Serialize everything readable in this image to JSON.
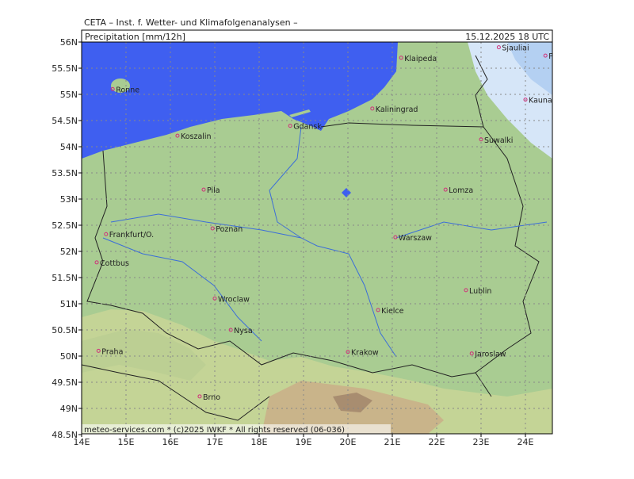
{
  "header": "CETA – Inst. f. Wetter- und Klimafolgenanalysen –",
  "title": "Precipitation [mm/12h]",
  "date": "15.12.2025 18 UTC",
  "footer": "meteo-services.com * (c)2025 IWKF * All rights reserved (06-036)",
  "lon_ticks": [
    {
      "value": 14,
      "label": "14E"
    },
    {
      "value": 15,
      "label": "15E"
    },
    {
      "value": 16,
      "label": "16E"
    },
    {
      "value": 17,
      "label": "17E"
    },
    {
      "value": 18,
      "label": "18E"
    },
    {
      "value": 19,
      "label": "19E"
    },
    {
      "value": 20,
      "label": "20E"
    },
    {
      "value": 21,
      "label": "21E"
    },
    {
      "value": 22,
      "label": "22E"
    },
    {
      "value": 23,
      "label": "23E"
    },
    {
      "value": 24,
      "label": "24E"
    }
  ],
  "lat_ticks": [
    {
      "value": 56,
      "label": "56N"
    },
    {
      "value": 55.5,
      "label": "55.5N"
    },
    {
      "value": 55,
      "label": "55N"
    },
    {
      "value": 54.5,
      "label": "54.5N"
    },
    {
      "value": 54,
      "label": "54N"
    },
    {
      "value": 53.5,
      "label": "53.5N"
    },
    {
      "value": 53,
      "label": "53N"
    },
    {
      "value": 52.5,
      "label": "52.5N"
    },
    {
      "value": 52,
      "label": "52N"
    },
    {
      "value": 51.5,
      "label": "51.5N"
    },
    {
      "value": 51,
      "label": "51N"
    },
    {
      "value": 50.5,
      "label": "50.5N"
    },
    {
      "value": 50,
      "label": "50N"
    },
    {
      "value": 49.5,
      "label": "49.5N"
    },
    {
      "value": 49,
      "label": "49N"
    },
    {
      "value": 48.5,
      "label": "48.5N"
    }
  ],
  "cities": [
    {
      "name": "Klaipeda",
      "lon": 21.2,
      "lat": 55.7
    },
    {
      "name": "Sjauliai",
      "lon": 23.4,
      "lat": 55.9
    },
    {
      "name": "Panevezys",
      "lon": 24.45,
      "lat": 55.74
    },
    {
      "name": "Kaunas",
      "lon": 24.0,
      "lat": 54.9
    },
    {
      "name": "Ronne",
      "lon": 14.7,
      "lat": 55.1
    },
    {
      "name": "Kaliningrad",
      "lon": 20.55,
      "lat": 54.73
    },
    {
      "name": "Gdansk",
      "lon": 18.7,
      "lat": 54.4
    },
    {
      "name": "Koszalin",
      "lon": 16.16,
      "lat": 54.21
    },
    {
      "name": "Suwalki",
      "lon": 23.0,
      "lat": 54.14
    },
    {
      "name": "Pila",
      "lon": 16.75,
      "lat": 53.18
    },
    {
      "name": "Lomza",
      "lon": 22.2,
      "lat": 53.18
    },
    {
      "name": "Poznan",
      "lon": 16.95,
      "lat": 52.44
    },
    {
      "name": "Frankfurt/O.",
      "lon": 14.55,
      "lat": 52.33
    },
    {
      "name": "Warszaw",
      "lon": 21.07,
      "lat": 52.27
    },
    {
      "name": "Cottbus",
      "lon": 14.34,
      "lat": 51.79
    },
    {
      "name": "Lublin",
      "lon": 22.66,
      "lat": 51.26
    },
    {
      "name": "Wroclaw",
      "lon": 17.0,
      "lat": 51.1
    },
    {
      "name": "Kielce",
      "lon": 20.68,
      "lat": 50.88
    },
    {
      "name": "Nysa",
      "lon": 17.36,
      "lat": 50.5
    },
    {
      "name": "Praha",
      "lon": 14.38,
      "lat": 50.1
    },
    {
      "name": "Krakow",
      "lon": 20.0,
      "lat": 50.08
    },
    {
      "name": "Jaroslaw",
      "lon": 22.79,
      "lat": 50.05
    },
    {
      "name": "Brno",
      "lon": 16.66,
      "lat": 49.23
    }
  ]
}
